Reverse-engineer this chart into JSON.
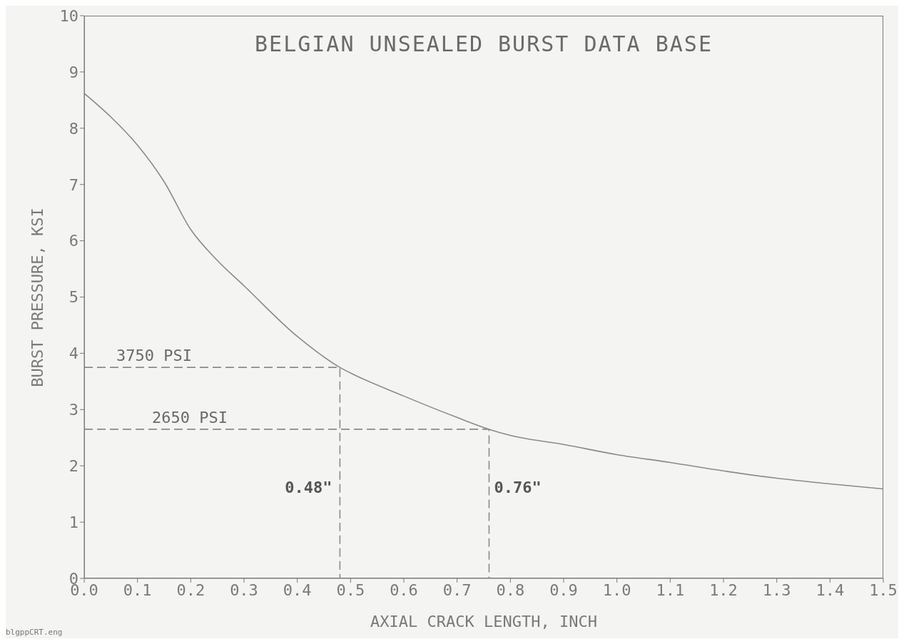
{
  "chart_data": {
    "type": "line",
    "title": "BELGIAN UNSEALED BURST DATA BASE",
    "xlabel": "AXIAL CRACK LENGTH, INCH",
    "ylabel": "BURST PRESSURE, KSI",
    "series": [
      {
        "color": "#8a8a8a",
        "x": [
          0,
          0.05,
          0.1,
          0.15,
          0.2,
          0.25,
          0.3,
          0.4,
          0.48,
          0.5,
          0.6,
          0.7,
          0.76,
          0.8,
          0.9,
          1.0,
          1.1,
          1.2,
          1.3,
          1.4,
          1.5
        ],
        "values": [
          8.62,
          8.2,
          7.7,
          7.05,
          6.2,
          5.65,
          5.2,
          4.3,
          3.75,
          3.65,
          3.24,
          2.86,
          2.65,
          2.54,
          2.38,
          2.2,
          2.06,
          1.91,
          1.78,
          1.68,
          1.59
        ]
      },
      {
        "color": "#8a8a8a",
        "line_style": "dashed",
        "x": [
          0,
          0.48,
          0.48
        ],
        "values": [
          3.75,
          3.75,
          0
        ]
      },
      {
        "color": "#8a8a8a",
        "line_style": "dashed",
        "x": [
          0,
          0.76,
          0.76
        ],
        "values": [
          2.65,
          2.65,
          0
        ]
      }
    ],
    "xlim": [
      0,
      1.5
    ],
    "xticks": [
      {
        "value": 0,
        "label": "0.0"
      },
      0.1,
      0.2,
      0.3,
      0.4,
      0.5,
      0.6,
      0.7,
      0.8,
      0.9,
      {
        "value": 1,
        "label": "1.0"
      },
      1.1,
      1.2,
      1.3,
      1.4,
      1.5
    ],
    "ylim": [
      0,
      10
    ],
    "yticks": [
      0,
      1,
      2,
      3,
      4,
      5,
      6,
      7,
      8,
      9,
      10
    ],
    "annotations": [
      {
        "text": "3750 PSI",
        "y": 3.75
      },
      {
        "text": "2650 PSI",
        "y": 2.65
      },
      {
        "text": "0.48\"",
        "x": 0.48
      },
      {
        "text": "0.76\"",
        "x": 0.76
      },
      "blgppCRT.eng"
    ],
    "grid": false,
    "marker": "none"
  }
}
